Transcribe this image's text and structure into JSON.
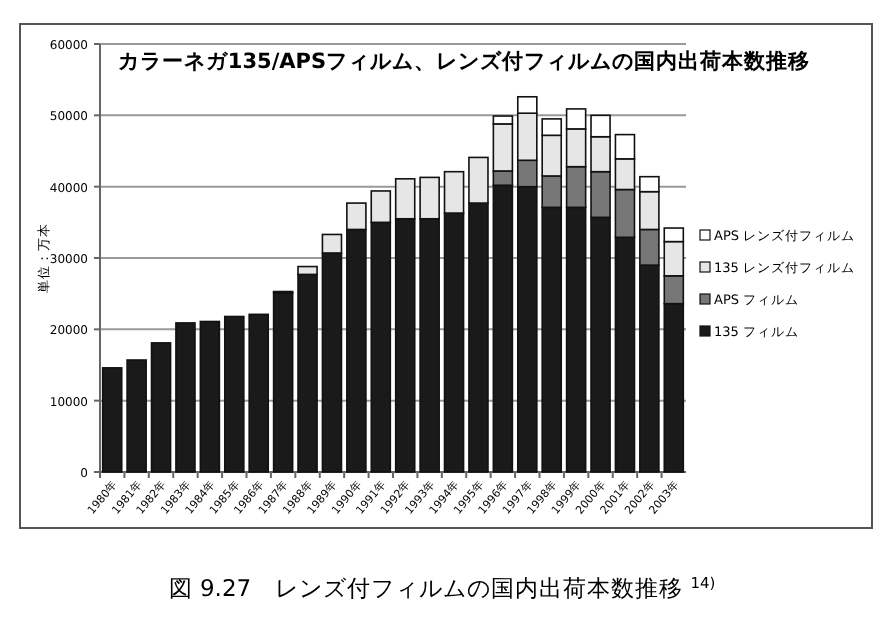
{
  "chart_data": {
    "type": "bar",
    "stacked": true,
    "title": "カラーネガ135/APSフィルム、レンズ付フィルムの国内出荷本数推移",
    "ylabel": "単位：万本",
    "categories": [
      "1980年",
      "1981年",
      "1982年",
      "1983年",
      "1984年",
      "1985年",
      "1986年",
      "1987年",
      "1988年",
      "1989年",
      "1990年",
      "1991年",
      "1992年",
      "1993年",
      "1994年",
      "1995年",
      "1996年",
      "1997年",
      "1998年",
      "1999年",
      "2000年",
      "2001年",
      "2002年",
      "2003年"
    ],
    "series": [
      {
        "name": "135 フィルム",
        "color": "#1a1a1a",
        "values": [
          14600,
          15700,
          18100,
          20900,
          21100,
          21800,
          22100,
          25100,
          27700,
          30700,
          34000,
          35000,
          35500,
          35500,
          36300,
          37700,
          40200,
          40000,
          37100,
          37100,
          35700,
          32900,
          29000,
          23600
        ]
      },
      {
        "name": "APS フィルム",
        "color": "#777777",
        "values": [
          null,
          null,
          null,
          null,
          null,
          null,
          null,
          null,
          null,
          null,
          null,
          null,
          null,
          null,
          null,
          null,
          2000,
          3700,
          4400,
          5700,
          6400,
          6700,
          5000,
          3900
        ]
      },
      {
        "name": "135 レンズ付フィルム",
        "color": "#e6e6e6",
        "values": [
          null,
          null,
          null,
          null,
          null,
          null,
          null,
          200,
          1100,
          2600,
          3700,
          4400,
          5600,
          5800,
          5800,
          6400,
          6600,
          6600,
          5700,
          5300,
          4900,
          4300,
          5300,
          4800
        ]
      },
      {
        "name": "APS レンズ付フィルム",
        "color": "#ffffff",
        "values": [
          null,
          null,
          null,
          null,
          null,
          null,
          null,
          null,
          null,
          null,
          null,
          null,
          null,
          null,
          null,
          null,
          1100,
          2300,
          2300,
          2800,
          3000,
          3400,
          2100,
          1900
        ]
      }
    ],
    "ylim": [
      0,
      60000
    ],
    "yticks": [
      0,
      10000,
      20000,
      30000,
      40000,
      50000,
      60000
    ],
    "grid": "y",
    "legend": "right",
    "annotations": [
      "図 9.27　レンズ付フィルムの国内出荷本数推移 $^{14)}$"
    ]
  }
}
